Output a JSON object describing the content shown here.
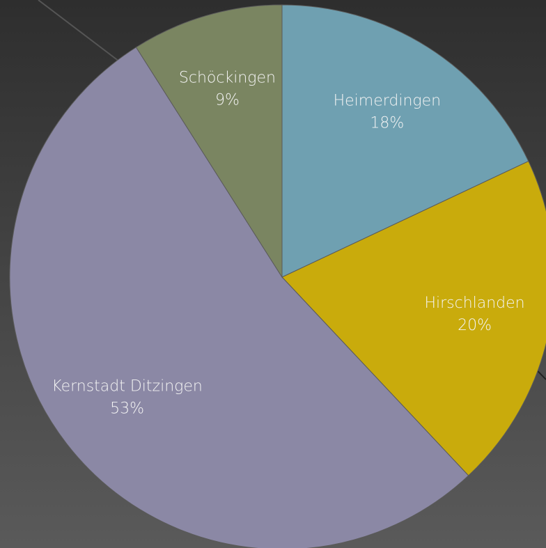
{
  "chart_data": {
    "type": "pie",
    "categories": [
      "Heimerdingen",
      "Hirschlanden",
      "Kernstadt Ditzingen",
      "Schöckingen"
    ],
    "values": [
      18,
      20,
      53,
      9
    ],
    "value_labels": [
      "18%",
      "20%",
      "53%",
      "9%"
    ],
    "colors": [
      "#6fa0b1",
      "#c9ab0c",
      "#8b88a5",
      "#7a8561"
    ]
  }
}
